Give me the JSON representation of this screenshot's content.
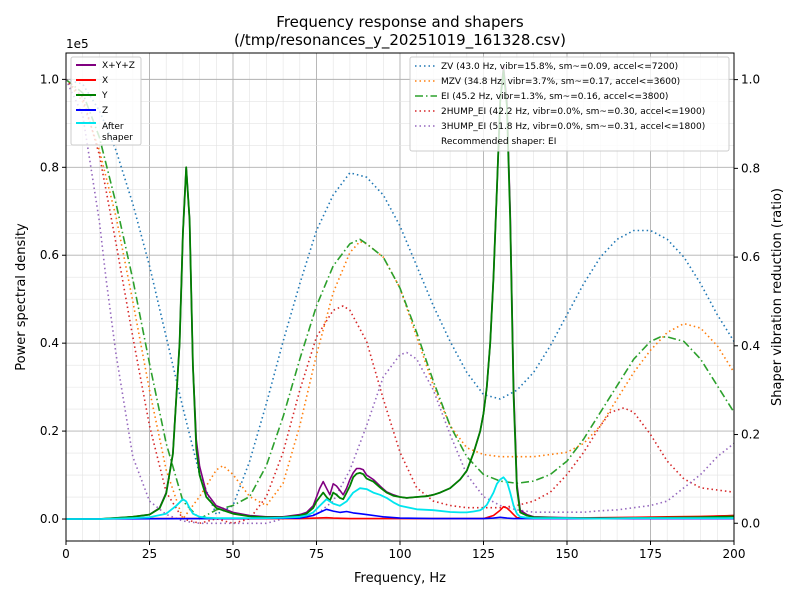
{
  "chart_data": {
    "type": "line",
    "title": [
      "Frequency response and shapers",
      "(/tmp/resonances_y_20251019_161328.csv)"
    ],
    "xlabel": "Frequency, Hz",
    "ylabel_left": "Power spectral density",
    "ylabel_right": "Shaper vibration reduction (ratio)",
    "left_exponent_label": "1e5",
    "xlim": [
      0,
      200
    ],
    "ylim_left": [
      -0.05,
      1.06
    ],
    "ylim_right": [
      -0.04,
      1.06
    ],
    "x_ticks": [
      0,
      25,
      50,
      75,
      100,
      125,
      150,
      175,
      200
    ],
    "x_tick_labels": [
      "0",
      "25",
      "50",
      "75",
      "100",
      "125",
      "150",
      "175",
      "200"
    ],
    "y_left_ticks": [
      0.0,
      0.2,
      0.4,
      0.6,
      0.8,
      1.0
    ],
    "y_left_tick_labels": [
      "0.0",
      "0.2",
      "0.4",
      "0.6",
      "0.8",
      "1.0"
    ],
    "y_right_ticks": [
      0.0,
      0.2,
      0.4,
      0.6,
      0.8,
      1.0
    ],
    "y_right_tick_labels": [
      "0.0",
      "0.2",
      "0.4",
      "0.6",
      "0.8",
      "1.0"
    ],
    "grid": true,
    "psd_legend": {
      "position": "upper-left",
      "entries": [
        "X+Y+Z",
        "X",
        "Y",
        "Z",
        "After\nshaper"
      ]
    },
    "shaper_legend": {
      "position": "upper-right",
      "entries": [
        "ZV (43.0 Hz, vibr=15.8%, sm~=0.09, accel<=7200)",
        "MZV (34.8 Hz, vibr=3.7%, sm~=0.17, accel<=3600)",
        "EI (45.2 Hz, vibr=1.3%, sm~=0.16, accel<=3800)",
        "2HUMP_EI (42.2 Hz, vibr=0.0%, sm~=0.30, accel<=1900)",
        "3HUMP_EI (51.8 Hz, vibr=0.0%, sm~=0.31, accel<=1800)",
        "Recommended shaper: EI"
      ]
    },
    "psd_series": [
      {
        "name": "X+Y+Z",
        "color": "#800080",
        "style": "solid",
        "width": 1.6,
        "x": [
          0,
          10,
          20,
          25,
          28,
          30,
          32,
          34,
          35,
          36,
          37,
          38,
          39,
          40,
          42,
          45,
          50,
          55,
          60,
          65,
          70,
          72,
          74,
          75,
          76,
          77,
          78,
          79,
          80,
          81,
          82,
          83,
          84,
          85,
          86,
          87,
          88,
          89,
          90,
          92,
          94,
          96,
          98,
          100,
          102,
          105,
          108,
          110,
          112,
          115,
          118,
          120,
          122,
          124,
          125,
          126,
          127,
          128,
          129,
          130,
          131,
          132,
          133,
          134,
          135,
          136,
          138,
          140,
          145,
          150,
          160,
          170,
          180,
          190,
          200
        ],
        "y": [
          0,
          0,
          0.005,
          0.01,
          0.025,
          0.06,
          0.15,
          0.4,
          0.65,
          0.8,
          0.68,
          0.35,
          0.18,
          0.12,
          0.06,
          0.03,
          0.015,
          0.008,
          0.005,
          0.005,
          0.01,
          0.015,
          0.03,
          0.05,
          0.07,
          0.085,
          0.07,
          0.055,
          0.08,
          0.075,
          0.065,
          0.055,
          0.07,
          0.09,
          0.105,
          0.115,
          0.115,
          0.112,
          0.1,
          0.09,
          0.075,
          0.062,
          0.055,
          0.05,
          0.048,
          0.05,
          0.052,
          0.055,
          0.06,
          0.07,
          0.09,
          0.11,
          0.15,
          0.2,
          0.24,
          0.3,
          0.4,
          0.55,
          0.75,
          0.95,
          1.03,
          0.95,
          0.7,
          0.3,
          0.08,
          0.02,
          0.01,
          0.005,
          0.004,
          0.003,
          0.002,
          0.003,
          0.004,
          0.005,
          0.008
        ]
      },
      {
        "name": "X",
        "color": "#ff0000",
        "style": "solid",
        "width": 1.6,
        "x": [
          0,
          25,
          50,
          70,
          75,
          78,
          80,
          85,
          100,
          125,
          128,
          130,
          131,
          132,
          133,
          134,
          135,
          140,
          150,
          160,
          170,
          180,
          190,
          200
        ],
        "y": [
          0,
          0.001,
          0.001,
          0.001,
          0.002,
          0.003,
          0.002,
          0.001,
          0.001,
          0.001,
          0.008,
          0.02,
          0.028,
          0.025,
          0.018,
          0.01,
          0.003,
          0.002,
          0.002,
          0.003,
          0.004,
          0.005,
          0.006,
          0.008
        ]
      },
      {
        "name": "Y",
        "color": "#008000",
        "style": "solid",
        "width": 1.8,
        "x": [
          0,
          10,
          20,
          25,
          28,
          30,
          32,
          34,
          35,
          36,
          37,
          38,
          39,
          40,
          42,
          45,
          50,
          55,
          60,
          65,
          70,
          72,
          74,
          75,
          76,
          77,
          78,
          79,
          80,
          81,
          82,
          83,
          84,
          85,
          86,
          87,
          88,
          89,
          90,
          92,
          94,
          96,
          98,
          100,
          102,
          105,
          108,
          110,
          112,
          115,
          118,
          120,
          122,
          124,
          125,
          126,
          127,
          128,
          129,
          130,
          131,
          132,
          133,
          134,
          135,
          136,
          138,
          140,
          145,
          150,
          160,
          170,
          180,
          190,
          200
        ],
        "y": [
          0,
          0,
          0.005,
          0.01,
          0.024,
          0.058,
          0.148,
          0.4,
          0.65,
          0.8,
          0.68,
          0.35,
          0.16,
          0.1,
          0.05,
          0.025,
          0.012,
          0.006,
          0.004,
          0.004,
          0.008,
          0.012,
          0.025,
          0.04,
          0.05,
          0.06,
          0.05,
          0.042,
          0.06,
          0.055,
          0.048,
          0.045,
          0.06,
          0.075,
          0.095,
          0.103,
          0.105,
          0.102,
          0.092,
          0.085,
          0.072,
          0.06,
          0.053,
          0.05,
          0.048,
          0.05,
          0.052,
          0.055,
          0.06,
          0.07,
          0.09,
          0.11,
          0.15,
          0.2,
          0.24,
          0.3,
          0.4,
          0.55,
          0.75,
          0.95,
          1.02,
          0.94,
          0.68,
          0.28,
          0.07,
          0.015,
          0.008,
          0.004,
          0.003,
          0.002,
          0.002,
          0.002,
          0.003,
          0.004,
          0.006
        ]
      },
      {
        "name": "Z",
        "color": "#0000ff",
        "style": "solid",
        "width": 1.6,
        "x": [
          0,
          50,
          70,
          74,
          76,
          78,
          80,
          82,
          84,
          86,
          88,
          90,
          95,
          100,
          110,
          125,
          128,
          130,
          131,
          132,
          134,
          136,
          140,
          150,
          175,
          200
        ],
        "y": [
          0,
          0.001,
          0.002,
          0.008,
          0.015,
          0.022,
          0.018,
          0.015,
          0.017,
          0.014,
          0.012,
          0.01,
          0.005,
          0.002,
          0.001,
          0.001,
          0.002,
          0.004,
          0.003,
          0.002,
          0.001,
          0.001,
          0.001,
          0.001,
          0.001,
          0.001
        ]
      },
      {
        "name": "After\nshaper",
        "color": "#00e5ee",
        "style": "solid",
        "width": 1.8,
        "x": [
          0,
          10,
          20,
          25,
          30,
          33,
          35,
          36,
          37,
          38,
          40,
          42,
          45,
          50,
          55,
          60,
          65,
          70,
          72,
          74,
          76,
          78,
          80,
          82,
          84,
          86,
          88,
          90,
          92,
          94,
          96,
          98,
          100,
          105,
          110,
          115,
          118,
          120,
          122,
          124,
          125,
          126,
          128,
          129,
          130,
          131,
          132,
          133,
          134,
          135,
          136,
          138,
          140,
          150,
          160,
          170,
          180,
          190,
          200
        ],
        "y": [
          0,
          0,
          0.002,
          0.004,
          0.012,
          0.03,
          0.045,
          0.04,
          0.025,
          0.012,
          0.005,
          0.003,
          0.002,
          0.002,
          0.002,
          0.002,
          0.003,
          0.005,
          0.008,
          0.015,
          0.03,
          0.045,
          0.035,
          0.03,
          0.04,
          0.06,
          0.07,
          0.068,
          0.06,
          0.055,
          0.048,
          0.038,
          0.03,
          0.022,
          0.02,
          0.016,
          0.015,
          0.015,
          0.017,
          0.02,
          0.025,
          0.032,
          0.06,
          0.08,
          0.09,
          0.095,
          0.085,
          0.06,
          0.03,
          0.012,
          0.005,
          0.003,
          0.002,
          0.002,
          0.001,
          0.002,
          0.002,
          0.002,
          0.002
        ]
      }
    ],
    "shaper_series": [
      {
        "name": "ZV",
        "color": "#1f77b4",
        "style": "dotted",
        "x": [
          0,
          5,
          10,
          15,
          20,
          25,
          30,
          35,
          40,
          45,
          50,
          55,
          60,
          65,
          70,
          75,
          80,
          85,
          90,
          95,
          100,
          105,
          110,
          115,
          120,
          125,
          130,
          135,
          140,
          145,
          150,
          155,
          160,
          165,
          170,
          175,
          180,
          185,
          190,
          195,
          200
        ],
        "y": [
          1.0,
          0.99,
          0.93,
          0.84,
          0.72,
          0.58,
          0.42,
          0.26,
          0.11,
          0.02,
          0.04,
          0.14,
          0.27,
          0.41,
          0.54,
          0.66,
          0.74,
          0.79,
          0.78,
          0.74,
          0.67,
          0.58,
          0.49,
          0.41,
          0.34,
          0.29,
          0.28,
          0.3,
          0.34,
          0.4,
          0.47,
          0.54,
          0.6,
          0.64,
          0.66,
          0.66,
          0.64,
          0.6,
          0.54,
          0.47,
          0.41
        ]
      },
      {
        "name": "MZV",
        "color": "#ff7f0e",
        "style": "dotted",
        "x": [
          0,
          5,
          10,
          15,
          20,
          25,
          30,
          35,
          40,
          45,
          47,
          50,
          55,
          60,
          65,
          70,
          75,
          80,
          85,
          88,
          90,
          95,
          100,
          105,
          110,
          115,
          120,
          125,
          130,
          135,
          140,
          145,
          150,
          155,
          160,
          165,
          170,
          175,
          180,
          185,
          190,
          195,
          200
        ],
        "y": [
          1.0,
          0.95,
          0.84,
          0.69,
          0.5,
          0.3,
          0.12,
          0.01,
          0.06,
          0.12,
          0.13,
          0.11,
          0.06,
          0.04,
          0.09,
          0.22,
          0.38,
          0.52,
          0.61,
          0.635,
          0.63,
          0.6,
          0.53,
          0.42,
          0.31,
          0.22,
          0.17,
          0.155,
          0.15,
          0.15,
          0.15,
          0.155,
          0.16,
          0.18,
          0.22,
          0.28,
          0.34,
          0.39,
          0.43,
          0.45,
          0.44,
          0.4,
          0.34
        ]
      },
      {
        "name": "EI",
        "color": "#2ca02c",
        "style": "dashdot",
        "x": [
          0,
          5,
          10,
          15,
          20,
          25,
          30,
          35,
          40,
          45,
          50,
          55,
          60,
          65,
          70,
          75,
          80,
          85,
          88,
          90,
          95,
          100,
          105,
          110,
          115,
          120,
          125,
          130,
          135,
          140,
          145,
          150,
          155,
          160,
          165,
          170,
          175,
          178,
          180,
          185,
          190,
          195,
          200
        ],
        "y": [
          1.0,
          0.97,
          0.87,
          0.72,
          0.55,
          0.36,
          0.18,
          0.05,
          0.01,
          0.03,
          0.04,
          0.06,
          0.13,
          0.24,
          0.37,
          0.49,
          0.58,
          0.63,
          0.64,
          0.63,
          0.6,
          0.53,
          0.43,
          0.32,
          0.22,
          0.15,
          0.11,
          0.095,
          0.09,
          0.095,
          0.11,
          0.14,
          0.19,
          0.25,
          0.31,
          0.37,
          0.41,
          0.42,
          0.42,
          0.41,
          0.37,
          0.31,
          0.25
        ]
      },
      {
        "name": "2HUMP_EI",
        "color": "#d62728",
        "style": "dotted",
        "x": [
          0,
          5,
          10,
          15,
          20,
          25,
          30,
          35,
          40,
          45,
          50,
          55,
          60,
          65,
          70,
          75,
          80,
          83,
          85,
          90,
          95,
          100,
          105,
          110,
          115,
          120,
          125,
          130,
          135,
          140,
          145,
          150,
          155,
          160,
          163,
          167,
          170,
          175,
          180,
          185,
          190,
          195,
          200
        ],
        "y": [
          1.0,
          0.96,
          0.83,
          0.63,
          0.42,
          0.22,
          0.07,
          0.01,
          0.0,
          0.01,
          0.0,
          0.01,
          0.06,
          0.16,
          0.3,
          0.42,
          0.48,
          0.49,
          0.48,
          0.41,
          0.28,
          0.16,
          0.08,
          0.05,
          0.04,
          0.035,
          0.035,
          0.035,
          0.04,
          0.05,
          0.07,
          0.11,
          0.16,
          0.22,
          0.25,
          0.26,
          0.25,
          0.2,
          0.14,
          0.1,
          0.08,
          0.075,
          0.07
        ]
      },
      {
        "name": "3HUMP_EI",
        "color": "#9467bd",
        "style": "dotted",
        "x": [
          0,
          5,
          10,
          12,
          15,
          20,
          25,
          30,
          35,
          40,
          45,
          50,
          55,
          60,
          65,
          70,
          75,
          80,
          85,
          90,
          95,
          100,
          102,
          105,
          110,
          115,
          120,
          125,
          130,
          135,
          140,
          145,
          150,
          155,
          160,
          165,
          170,
          175,
          180,
          185,
          190,
          195,
          200
        ],
        "y": [
          1.0,
          0.92,
          0.68,
          0.55,
          0.38,
          0.15,
          0.05,
          0.02,
          0.005,
          0.0,
          0.0,
          0.0,
          0.0,
          0.0,
          0.01,
          0.02,
          0.02,
          0.05,
          0.12,
          0.22,
          0.33,
          0.38,
          0.385,
          0.37,
          0.3,
          0.2,
          0.11,
          0.06,
          0.04,
          0.03,
          0.025,
          0.025,
          0.025,
          0.025,
          0.028,
          0.03,
          0.035,
          0.04,
          0.05,
          0.08,
          0.11,
          0.15,
          0.18
        ]
      }
    ]
  }
}
